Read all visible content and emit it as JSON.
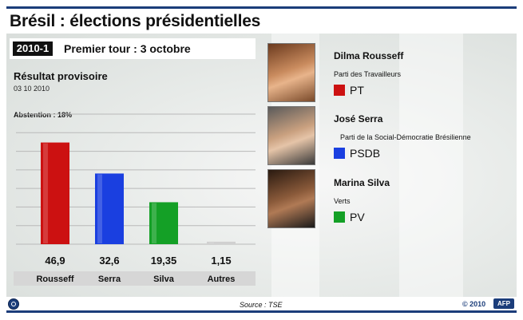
{
  "header": {
    "title": "Brésil : élections présidentielles",
    "year_badge": "2010-1",
    "round": "Premier tour : 3 octobre"
  },
  "result": {
    "subtitle": "Résultat provisoire",
    "date": "03 10 2010",
    "abstention": "Abstention : 18%"
  },
  "chart_data": {
    "type": "bar",
    "categories": [
      "Rousseff",
      "Serra",
      "Silva",
      "Autres"
    ],
    "values": [
      46.9,
      32.6,
      19.35,
      1.15
    ],
    "value_labels": [
      "46,9",
      "32,6",
      "19,35",
      "1,15"
    ],
    "colors": [
      "#cc1111",
      "#1a3fe0",
      "#14a026",
      "#d0d0d0"
    ],
    "ylim": [
      0,
      60
    ],
    "grid": true
  },
  "candidates": [
    {
      "name": "Dilma Rousseff",
      "party": "Parti des Travailleurs",
      "abbr": "PT",
      "color": "#cc1111"
    },
    {
      "name": "José Serra",
      "party": "Parti de la Social-Démocratie Brésilienne",
      "abbr": "PSDB",
      "color": "#1a3fe0"
    },
    {
      "name": "Marina Silva",
      "party": "Verts",
      "abbr": "PV",
      "color": "#14a026"
    }
  ],
  "footer": {
    "source": "Source : TSE",
    "copyright": "© 2010",
    "logo": "AFP"
  },
  "icons": {
    "zoom": "zoom-icon"
  }
}
